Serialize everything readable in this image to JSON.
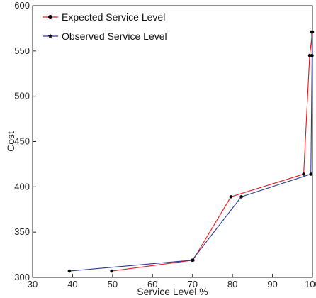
{
  "chart_data": {
    "type": "line",
    "title": "",
    "xlabel": "Service Level %",
    "ylabel": "Cost",
    "xlim": [
      30,
      100
    ],
    "ylim": [
      300,
      600
    ],
    "xticks": [
      30,
      40,
      50,
      60,
      70,
      80,
      90,
      100
    ],
    "yticks": [
      300,
      350,
      400,
      450,
      500,
      550,
      600
    ],
    "grid": false,
    "legend": "top-left",
    "series": [
      {
        "name": "Expected Service Level",
        "color": "#e8141b",
        "marker": "circle",
        "points": [
          {
            "x": 49.8,
            "y": 307
          },
          {
            "x": 70.1,
            "y": 319
          },
          {
            "x": 79.6,
            "y": 389
          },
          {
            "x": 97.8,
            "y": 414
          },
          {
            "x": 99.3,
            "y": 545
          },
          {
            "x": 100.0,
            "y": 571
          }
        ]
      },
      {
        "name": "Observed Service Level",
        "color": "#2b3a8f",
        "marker": "star",
        "points": [
          {
            "x": 39.2,
            "y": 307
          },
          {
            "x": 69.9,
            "y": 319
          },
          {
            "x": 82.2,
            "y": 389
          },
          {
            "x": 99.6,
            "y": 414
          },
          {
            "x": 99.9,
            "y": 545
          },
          {
            "x": 99.8,
            "y": 571
          }
        ]
      }
    ]
  }
}
